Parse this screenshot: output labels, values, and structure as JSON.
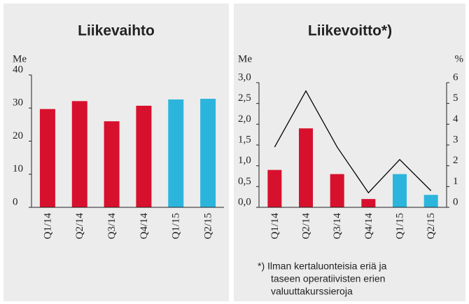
{
  "chart_data": [
    {
      "type": "bar",
      "title": "Liikevaihto",
      "ylabel": "Me",
      "categories": [
        "Q1/14",
        "Q2/14",
        "Q3/14",
        "Q4/14",
        "Q1/15",
        "Q2/15"
      ],
      "values": [
        29.7,
        32.1,
        26,
        30.7,
        32.6,
        32.8
      ],
      "colors": [
        "#d7112d",
        "#d7112d",
        "#d7112d",
        "#d7112d",
        "#2cb5dc",
        "#2cb5dc"
      ],
      "ylim": [
        0,
        40
      ],
      "yticks": [
        0,
        10,
        20,
        30,
        40
      ]
    },
    {
      "type": "bar_line",
      "title": "Liikevoitto*)",
      "ylabel": "Me",
      "y2label": "%",
      "categories": [
        "Q1/14",
        "Q2/14",
        "Q3/14",
        "Q4/14",
        "Q1/15",
        "Q2/15"
      ],
      "series": [
        {
          "type": "bar",
          "values": [
            0.9,
            1.9,
            0.8,
            0.2,
            0.8,
            0.3
          ],
          "colors": [
            "#d7112d",
            "#d7112d",
            "#d7112d",
            "#d7112d",
            "#2cb5dc",
            "#2cb5dc"
          ]
        },
        {
          "type": "line",
          "axis": "y2",
          "color": "#000000",
          "values": [
            2.9,
            5.6,
            2.9,
            0.7,
            2.3,
            0.8
          ]
        }
      ],
      "ylim": [
        0,
        3
      ],
      "yticks": [
        {
          "value": 0,
          "label": "0,0"
        },
        {
          "value": 0.5,
          "label": "0,5"
        },
        {
          "value": 1,
          "label": "1,0"
        },
        {
          "value": 1.5,
          "label": "1,5"
        },
        {
          "value": 2,
          "label": "2,0"
        },
        {
          "value": 2.5,
          "label": "2,5"
        },
        {
          "value": 3,
          "label": "3,0"
        }
      ],
      "y2lim": [
        0,
        6
      ],
      "y2ticks": [
        0,
        1,
        2,
        3,
        4,
        5,
        6
      ],
      "annotation": [
        "*) Ilman kertaluonteisia eriä ja",
        "taseen operatiivisten erien",
        "valuuttakurssieroja"
      ]
    }
  ]
}
